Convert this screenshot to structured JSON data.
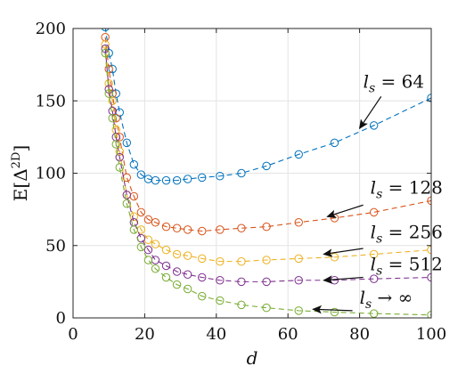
{
  "chart_data": {
    "type": "line",
    "title": "",
    "xlabel": "d",
    "ylabel_parts": {
      "prefix": "E[",
      "symbol": "Δ",
      "superscript": "2D",
      "suffix": "]"
    },
    "xlim": [
      0,
      100
    ],
    "ylim": [
      0,
      200
    ],
    "x_ticks": [
      0,
      20,
      40,
      60,
      80,
      100
    ],
    "y_ticks": [
      0,
      50,
      100,
      150,
      200
    ],
    "grid": true,
    "legend": "none",
    "series": [
      {
        "name": "l_s = 64",
        "color": "#0072BD",
        "x": [
          9,
          10,
          11,
          12,
          13,
          15,
          17,
          19,
          21,
          23,
          26,
          29,
          32,
          36,
          41,
          47,
          54,
          63,
          73,
          84,
          100
        ],
        "y": [
          201,
          183,
          172,
          155,
          142,
          121,
          106,
          99,
          96,
          95,
          95,
          95,
          96,
          97,
          98,
          100,
          105,
          113,
          121,
          133,
          152
        ]
      },
      {
        "name": "l_s = 128",
        "color": "#D95319",
        "x": [
          9,
          10,
          11,
          12,
          13,
          15,
          17,
          19,
          21,
          23,
          26,
          29,
          32,
          36,
          41,
          47,
          54,
          63,
          73,
          84,
          100
        ],
        "y": [
          194,
          172,
          155,
          138,
          125,
          97,
          84,
          73,
          68,
          66,
          63,
          62,
          61,
          60,
          61,
          62,
          63,
          66,
          69,
          73,
          81
        ]
      },
      {
        "name": "l_s = 256",
        "color": "#EDB120",
        "x": [
          9,
          10,
          11,
          12,
          13,
          15,
          17,
          19,
          21,
          23,
          26,
          29,
          32,
          36,
          41,
          47,
          54,
          63,
          73,
          84,
          100
        ],
        "y": [
          189,
          162,
          150,
          130,
          115,
          85,
          70,
          61,
          54,
          51,
          47,
          44,
          43,
          41,
          39,
          39,
          40,
          41,
          42,
          44,
          47
        ]
      },
      {
        "name": "l_s = 512",
        "color": "#7E2F8E",
        "x": [
          9,
          10,
          11,
          12,
          13,
          15,
          17,
          19,
          21,
          23,
          26,
          29,
          32,
          36,
          41,
          47,
          54,
          63,
          73,
          84,
          100
        ],
        "y": [
          186,
          158,
          143,
          125,
          111,
          85,
          66,
          55,
          47,
          40,
          36,
          32,
          30,
          28,
          26,
          25,
          25,
          26,
          26,
          27,
          28
        ]
      },
      {
        "name": "l_s → ∞",
        "color": "#77AC30",
        "x": [
          9,
          10,
          11,
          12,
          13,
          15,
          17,
          19,
          21,
          23,
          26,
          29,
          32,
          36,
          41,
          47,
          54,
          63,
          73,
          84,
          100
        ],
        "y": [
          183,
          155,
          138,
          120,
          104,
          79,
          61,
          49,
          40,
          34,
          28,
          23,
          20,
          15,
          12,
          9,
          7,
          5,
          4,
          3,
          2
        ]
      }
    ],
    "annotations": [
      {
        "series": 0,
        "text_main": "l",
        "text_sub": "s",
        "text_rest": " = 64",
        "text_x": 81,
        "text_y": 159,
        "arrow_from": [
          86,
          153
        ],
        "arrow_to": [
          80,
          131
        ]
      },
      {
        "series": 1,
        "text_main": "l",
        "text_sub": "s",
        "text_rest": " = 128",
        "text_x": 83,
        "text_y": 86,
        "arrow_from": [
          81,
          78
        ],
        "arrow_to": [
          71,
          70
        ]
      },
      {
        "series": 2,
        "text_main": "l",
        "text_sub": "s",
        "text_rest": " = 256",
        "text_x": 83,
        "text_y": 55,
        "arrow_from": [
          81,
          48
        ],
        "arrow_to": [
          70,
          44
        ]
      },
      {
        "series": 3,
        "text_main": "l",
        "text_sub": "s",
        "text_rest": " = 512",
        "text_x": 83,
        "text_y": 33,
        "arrow_from": [
          81,
          28
        ],
        "arrow_to": [
          70,
          26
        ]
      },
      {
        "series": 4,
        "text_main": "l",
        "text_sub": "s",
        "text_rest": " → ∞",
        "text_x": 80,
        "text_y": 10,
        "arrow_from": [
          78,
          5
        ],
        "arrow_to": [
          67,
          6
        ]
      }
    ]
  }
}
